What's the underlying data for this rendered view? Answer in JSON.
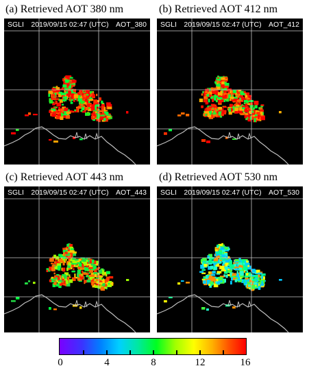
{
  "panels": [
    {
      "title": "(a) Retrieved AOT 380 nm",
      "sensor": "SGLI",
      "datetime": "2019/09/15  02:47 (UTC)",
      "product": "AOT_380"
    },
    {
      "title": "(b) Retrieved AOT 412 nm",
      "sensor": "SGLI",
      "datetime": "2019/09/15  02:47 (UTC)",
      "product": "AOT_412"
    },
    {
      "title": "(c) Retrieved AOT 443 nm",
      "sensor": "SGLI",
      "datetime": "2019/09/15  02:47 (UTC)",
      "product": "AOT_443"
    },
    {
      "title": "(d) Retrieved AOT 530 nm",
      "sensor": "SGLI",
      "datetime": "2019/09/15  02:47 (UTC)",
      "product": "AOT_530"
    }
  ],
  "colorbar": {
    "ticks": [
      "0",
      "4",
      "8",
      "12",
      "16"
    ],
    "min": 0,
    "max": 16,
    "colors": [
      "#7a00ff",
      "#0080ff",
      "#00d0ff",
      "#00ff20",
      "#ffff00",
      "#ff5000",
      "#ff0000"
    ]
  }
}
